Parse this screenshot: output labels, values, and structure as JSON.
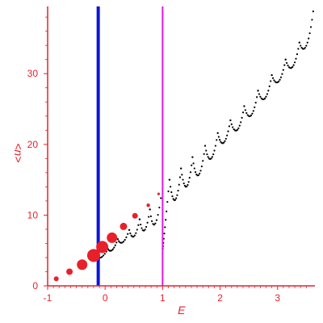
{
  "chart_data": {
    "type": "scatter",
    "title": "",
    "xlabel": "E",
    "ylabel": "<n>",
    "xlim": [
      -1.0,
      3.65
    ],
    "ylim": [
      0,
      39.5
    ],
    "x_ticks": [
      -1,
      0,
      1,
      2,
      3
    ],
    "y_ticks": [
      0,
      10,
      20,
      30
    ],
    "grid": false,
    "colors": {
      "axis": "#e8202a",
      "points": "#000000",
      "markers": "#e8202a",
      "line_blue": "#0b16d6",
      "line_magenta": "#e21ae2"
    },
    "vertical_lines": [
      {
        "x": -0.12,
        "color": "#0b16d6",
        "width": 4
      },
      {
        "x": 1.0,
        "color": "#e21ae2",
        "width": 2
      }
    ],
    "series": [
      {
        "kind": "red_markers",
        "points": [
          {
            "x": -0.85,
            "y": 1.0,
            "size": 3
          },
          {
            "x": -0.62,
            "y": 2.0,
            "size": 4
          },
          {
            "x": -0.4,
            "y": 3.0,
            "size": 6.5
          },
          {
            "x": -0.2,
            "y": 4.3,
            "size": 8
          },
          {
            "x": -0.05,
            "y": 5.5,
            "size": 7.5
          },
          {
            "x": 0.12,
            "y": 6.8,
            "size": 6.5
          },
          {
            "x": 0.32,
            "y": 8.4,
            "size": 4.5
          },
          {
            "x": 0.52,
            "y": 9.9,
            "size": 3.5
          },
          {
            "x": 0.75,
            "y": 11.4,
            "size": 2.2
          },
          {
            "x": 0.93,
            "y": 13.0,
            "size": 1.6
          }
        ]
      }
    ],
    "scallop_branches": {
      "low_branches": [
        {
          "start": [
            -0.15,
            4.2
          ],
          "min": [
            -0.08,
            3.9
          ],
          "end": [
            0.05,
            5.2
          ]
        },
        {
          "start": [
            0.05,
            5.2
          ],
          "min": [
            0.12,
            4.8
          ],
          "end": [
            0.22,
            6.6
          ]
        },
        {
          "start": [
            0.22,
            6.6
          ],
          "min": [
            0.3,
            5.6
          ],
          "end": [
            0.42,
            7.9
          ]
        },
        {
          "start": [
            0.42,
            7.9
          ],
          "min": [
            0.5,
            5.9
          ],
          "end": [
            0.6,
            9.4
          ]
        },
        {
          "start": [
            0.6,
            9.4
          ],
          "min": [
            0.68,
            6.1
          ],
          "end": [
            0.78,
            10.8
          ]
        },
        {
          "start": [
            0.78,
            10.8
          ],
          "min": [
            0.85,
            6.3
          ],
          "end": [
            0.97,
            12.4
          ]
        }
      ],
      "high_branches": [
        {
          "start": [
            1.0,
            5.2
          ],
          "end": [
            1.12,
            15.0
          ],
          "min": [
            1.0,
            5.2
          ]
        },
        {
          "start": [
            1.12,
            15.0
          ],
          "min": [
            1.22,
            9.0
          ],
          "end": [
            1.32,
            16.6
          ]
        },
        {
          "start": [
            1.32,
            16.6
          ],
          "min": [
            1.42,
            11.2
          ],
          "end": [
            1.52,
            18.2
          ]
        },
        {
          "start": [
            1.52,
            18.2
          ],
          "min": [
            1.62,
            12.8
          ],
          "end": [
            1.74,
            19.8
          ]
        },
        {
          "start": [
            1.74,
            19.8
          ],
          "min": [
            1.84,
            15.8
          ],
          "end": [
            1.96,
            21.6
          ]
        },
        {
          "start": [
            1.96,
            21.6
          ],
          "min": [
            2.06,
            18.5
          ],
          "end": [
            2.18,
            23.4
          ]
        },
        {
          "start": [
            2.18,
            23.4
          ],
          "min": [
            2.3,
            20.2
          ],
          "end": [
            2.42,
            25.4
          ]
        },
        {
          "start": [
            2.42,
            25.4
          ],
          "min": [
            2.54,
            22.2
          ],
          "end": [
            2.66,
            27.6
          ]
        },
        {
          "start": [
            2.66,
            27.6
          ],
          "min": [
            2.78,
            24.8
          ],
          "end": [
            2.9,
            29.8
          ]
        },
        {
          "start": [
            2.9,
            29.8
          ],
          "min": [
            3.02,
            27.4
          ],
          "end": [
            3.14,
            32.0
          ]
        },
        {
          "start": [
            3.14,
            32.0
          ],
          "min": [
            3.26,
            29.2
          ],
          "end": [
            3.38,
            34.4
          ]
        },
        {
          "start": [
            3.38,
            34.4
          ],
          "min": [
            3.5,
            31.8
          ],
          "end": [
            3.62,
            38.8
          ]
        }
      ]
    }
  }
}
